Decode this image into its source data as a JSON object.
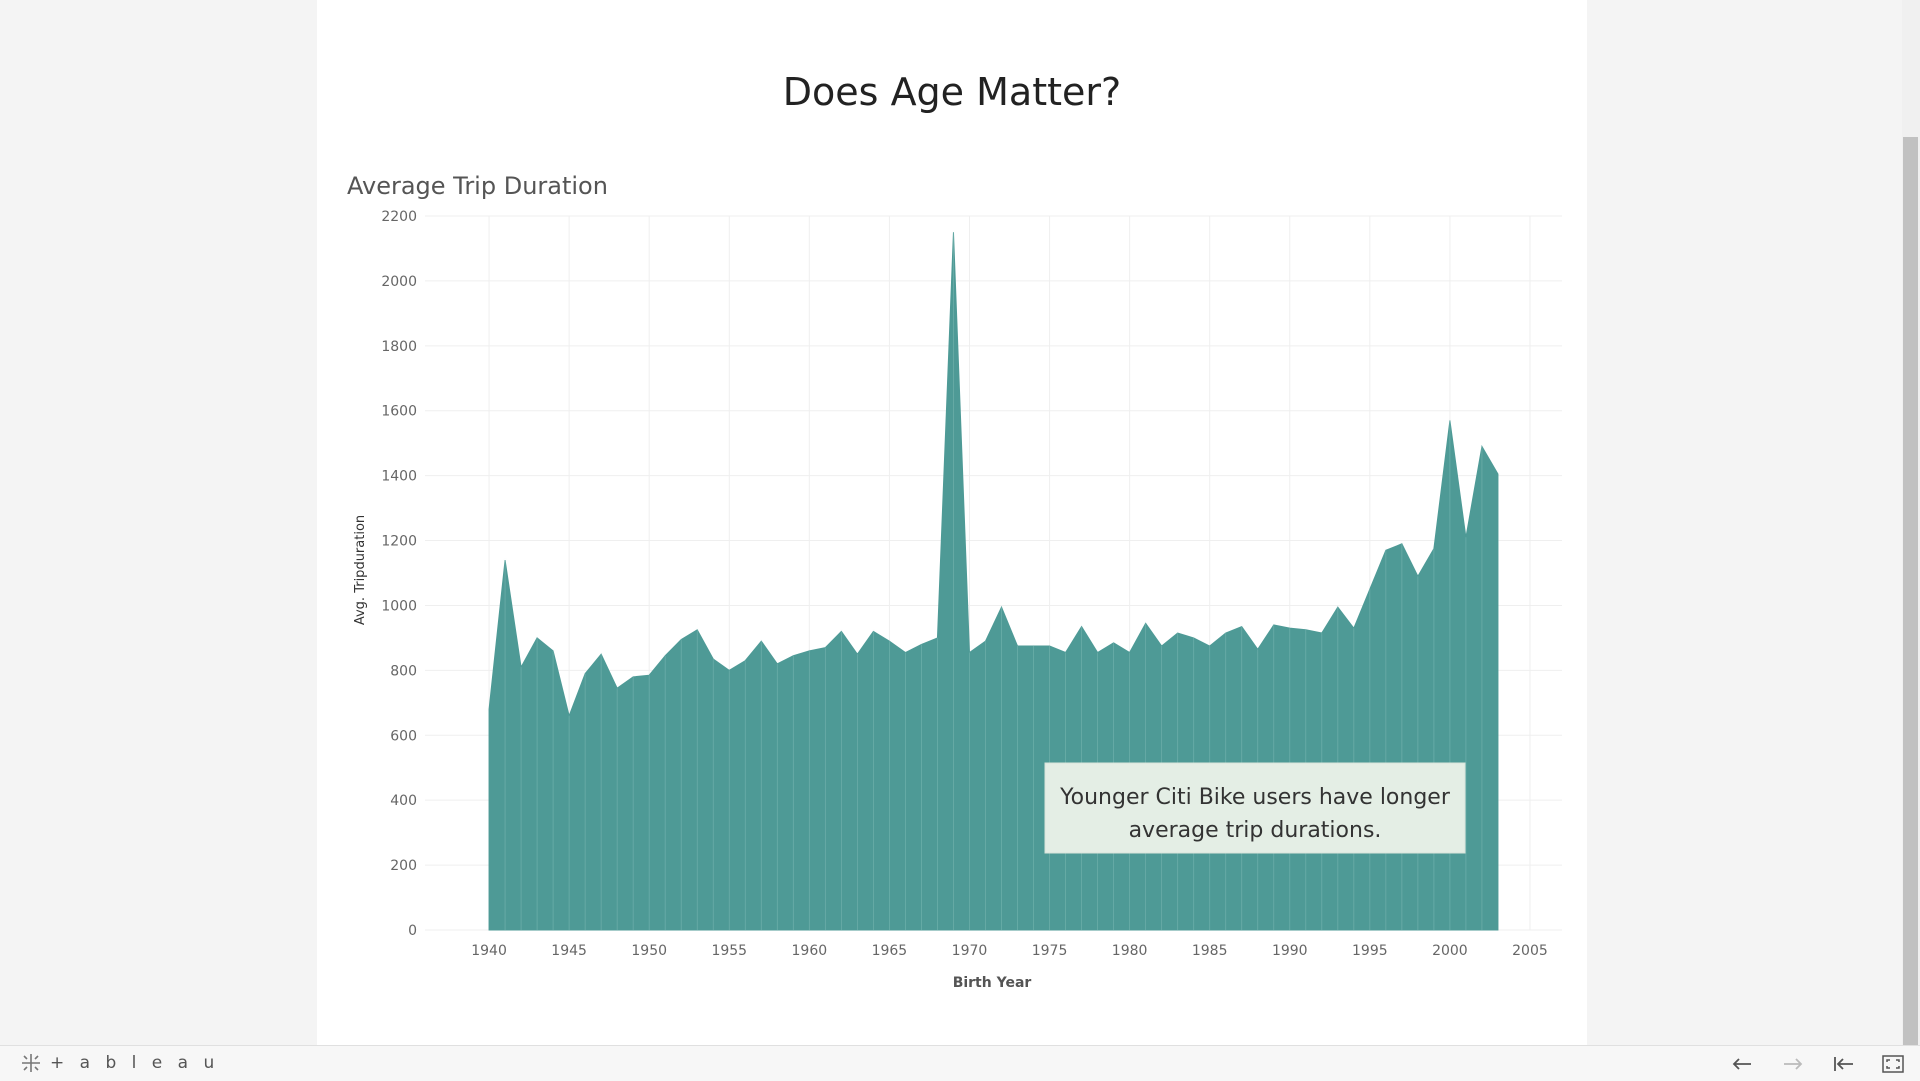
{
  "dashboard_title": "Does Age Matter?",
  "chart_data": {
    "type": "area",
    "title": "Average Trip Duration",
    "xlabel": "Birth Year",
    "ylabel": "Avg. Tripduration",
    "xlim": [
      1936,
      2007
    ],
    "ylim": [
      0,
      2200
    ],
    "x_ticks": [
      1940,
      1945,
      1950,
      1955,
      1960,
      1965,
      1970,
      1975,
      1980,
      1985,
      1990,
      1995,
      2000,
      2005
    ],
    "y_ticks": [
      0,
      200,
      400,
      600,
      800,
      1000,
      1200,
      1400,
      1600,
      1800,
      2000,
      2200
    ],
    "grid": true,
    "color": "#4e9a96",
    "x": [
      1940,
      1941,
      1942,
      1943,
      1944,
      1945,
      1946,
      1947,
      1948,
      1949,
      1950,
      1951,
      1952,
      1953,
      1954,
      1955,
      1956,
      1957,
      1958,
      1959,
      1960,
      1961,
      1962,
      1963,
      1964,
      1965,
      1966,
      1967,
      1968,
      1969,
      1970,
      1971,
      1972,
      1973,
      1974,
      1975,
      1976,
      1977,
      1978,
      1979,
      1980,
      1981,
      1982,
      1983,
      1984,
      1985,
      1986,
      1987,
      1988,
      1989,
      1990,
      1991,
      1992,
      1993,
      1994,
      1995,
      1996,
      1997,
      1998,
      1999,
      2000,
      2001,
      2002,
      2003
    ],
    "y": [
      680,
      1140,
      810,
      900,
      860,
      660,
      790,
      850,
      745,
      780,
      785,
      845,
      895,
      925,
      835,
      800,
      830,
      890,
      820,
      845,
      860,
      870,
      920,
      850,
      920,
      890,
      855,
      880,
      900,
      2150,
      855,
      890,
      995,
      875,
      875,
      875,
      855,
      935,
      855,
      885,
      855,
      945,
      875,
      915,
      900,
      875,
      915,
      935,
      865,
      940,
      930,
      925,
      915,
      995,
      930,
      1050,
      1170,
      1190,
      1090,
      1175,
      1570,
      1210,
      1490,
      1405
    ]
  },
  "annotation": {
    "line1": "Younger Citi Bike users have longer",
    "line2": "average trip durations."
  },
  "footer": {
    "logo_text": "+ a b l e a u"
  }
}
